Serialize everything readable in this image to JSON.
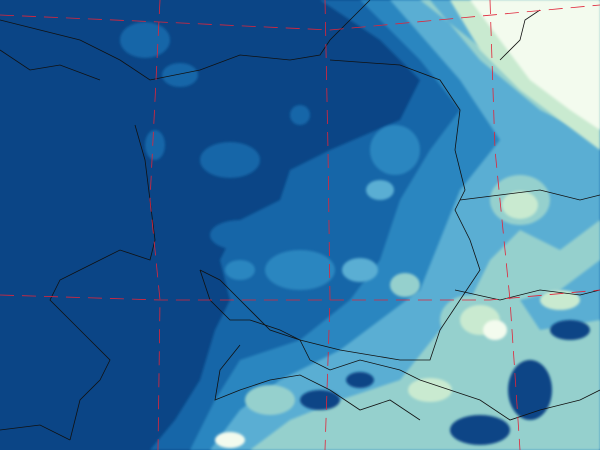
{
  "map": {
    "palette": {
      "level0": "#0b4586",
      "level1": "#1466a8",
      "level2": "#2b86c0",
      "level3": "#5aaed3",
      "level4": "#95d0cd",
      "level5": "#c9ead0",
      "level6": "#f3fbee"
    },
    "graticule_color": "#e0253a",
    "border_color": "#111111"
  }
}
